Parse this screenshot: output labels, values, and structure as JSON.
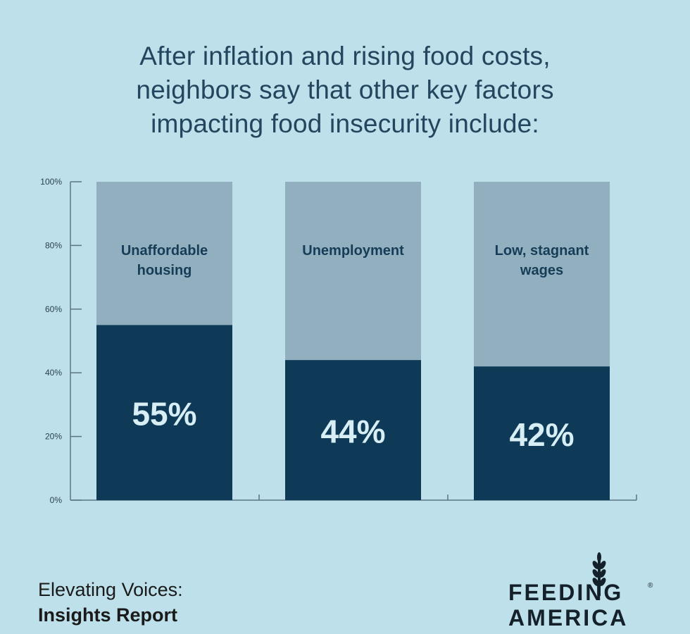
{
  "title_lines": [
    "After inflation and rising food costs,",
    "neighbors say that other key factors",
    "impacting food insecurity include:"
  ],
  "colors": {
    "background": "#bde0ea",
    "bar_fill": "#0e3a58",
    "bar_remainder": "#92afbf",
    "bar_label": "#163d57",
    "value_label": "#d7eef5",
    "axis": "#5b7585",
    "title": "#23465e"
  },
  "chart_data": {
    "type": "bar",
    "stacked_to": 100,
    "categories": [
      "Unaffordable housing",
      "Unemployment",
      "Low, stagnant wages"
    ],
    "category_label_lines": [
      [
        "Unaffordable",
        "housing"
      ],
      [
        "Unemployment"
      ],
      [
        "Low, stagnant",
        "wages"
      ]
    ],
    "values": [
      55,
      44,
      42
    ],
    "value_labels": [
      "55%",
      "44%",
      "42%"
    ],
    "ylim": [
      0,
      100
    ],
    "yticks": [
      0,
      20,
      40,
      60,
      80,
      100
    ],
    "ytick_labels": [
      "0%",
      "20%",
      "40%",
      "60%",
      "80%",
      "100%"
    ],
    "grid": false,
    "xlabel": "",
    "ylabel": ""
  },
  "footer": {
    "subtitle": "Elevating Voices:",
    "report": "Insights Report"
  },
  "logo": {
    "icon": "wheat-icon",
    "line1": "FEEDING",
    "line2": "AMERICA",
    "registered": "®"
  }
}
